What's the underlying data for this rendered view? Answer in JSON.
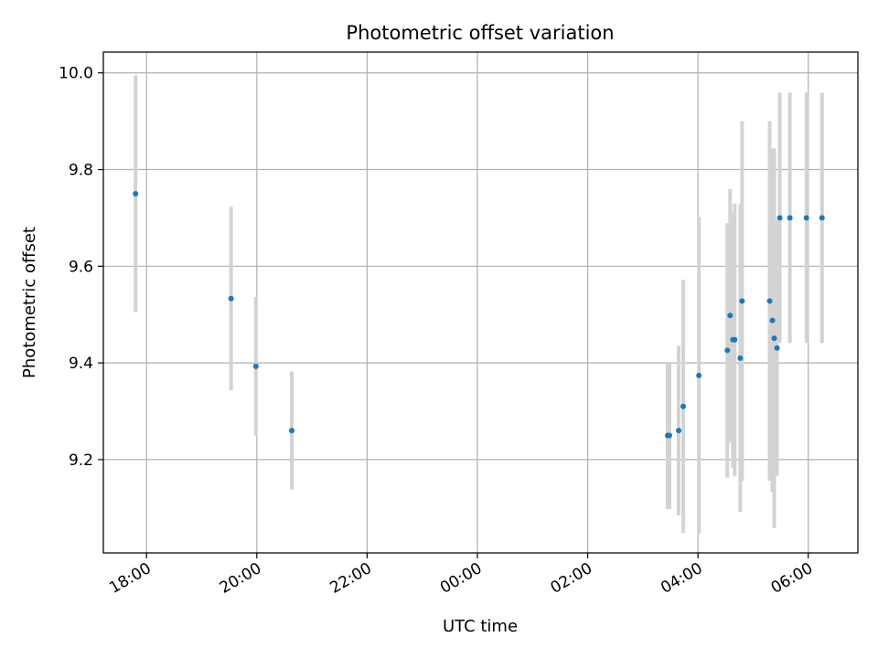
{
  "chart_data": {
    "type": "scatter",
    "title": "Photometric offset variation",
    "xlabel": "UTC time",
    "ylabel": "Photometric offset",
    "x_axis": "UTC time of day; the window spans one night, 17:00 to 07:00",
    "xlim": [
      "17:13",
      "06:54"
    ],
    "ylim": [
      9.007,
      10.043
    ],
    "x_ticks": [
      "18:00",
      "20:00",
      "22:00",
      "00:00",
      "02:00",
      "04:00",
      "06:00"
    ],
    "y_ticks": [
      "9.2",
      "9.4",
      "9.6",
      "9.8",
      "10.0"
    ],
    "grid": true,
    "legend": "none",
    "colors": {
      "point": "#1f77b4",
      "errorbar": "#d3d3d3",
      "grid": "#b0b0b0"
    },
    "points": [
      {
        "x": "17:48",
        "y": 9.75,
        "yerr": 0.245
      },
      {
        "x": "19:32",
        "y": 9.533,
        "yerr": 0.19
      },
      {
        "x": "19:59",
        "y": 9.393,
        "yerr": 0.143
      },
      {
        "x": "20:38",
        "y": 9.26,
        "yerr": 0.122
      },
      {
        "x": "03:27",
        "y": 9.25,
        "yerr": 0.152
      },
      {
        "x": "03:29",
        "y": 9.25,
        "yerr": 0.152
      },
      {
        "x": "03:39",
        "y": 9.26,
        "yerr": 0.175
      },
      {
        "x": "03:44",
        "y": 9.31,
        "yerr": 0.262
      },
      {
        "x": "04:01",
        "y": 9.374,
        "yerr": 0.328
      },
      {
        "x": "04:32",
        "y": 9.426,
        "yerr": 0.263
      },
      {
        "x": "04:35",
        "y": 9.498,
        "yerr": 0.262
      },
      {
        "x": "04:38",
        "y": 9.448,
        "yerr": 0.265
      },
      {
        "x": "04:40",
        "y": 9.448,
        "yerr": 0.282
      },
      {
        "x": "04:46",
        "y": 9.41,
        "yerr": 0.318
      },
      {
        "x": "04:48",
        "y": 9.528,
        "yerr": 0.372
      },
      {
        "x": "05:18",
        "y": 9.528,
        "yerr": 0.372
      },
      {
        "x": "05:21",
        "y": 9.488,
        "yerr": 0.355
      },
      {
        "x": "05:23",
        "y": 9.451,
        "yerr": 0.393
      },
      {
        "x": "05:26",
        "y": 9.431,
        "yerr": 0.265
      },
      {
        "x": "05:29",
        "y": 9.7,
        "yerr": 0.259
      },
      {
        "x": "05:40",
        "y": 9.7,
        "yerr": 0.259
      },
      {
        "x": "05:58",
        "y": 9.7,
        "yerr": 0.259
      },
      {
        "x": "06:15",
        "y": 9.7,
        "yerr": 0.259
      }
    ]
  }
}
